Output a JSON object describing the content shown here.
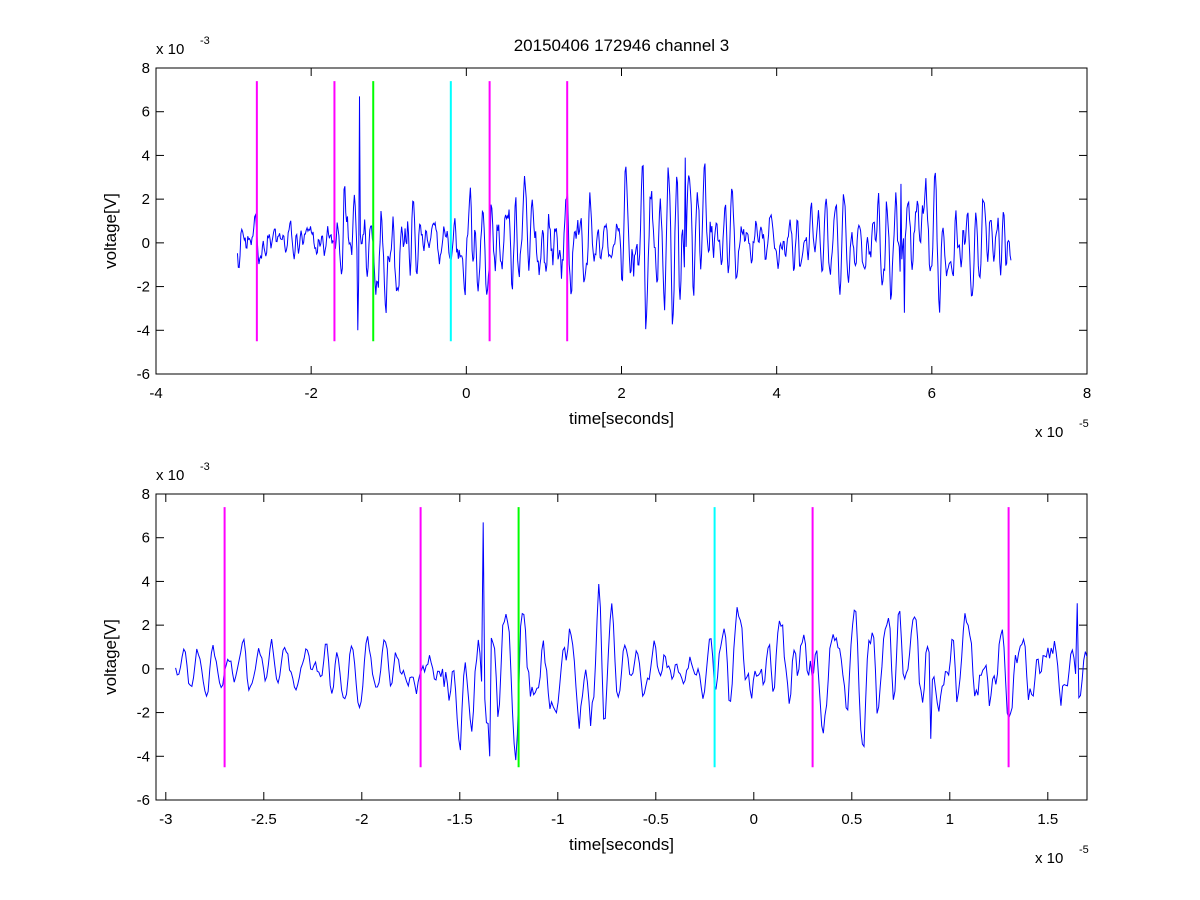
{
  "chart_data": [
    {
      "type": "line",
      "title": "20150406 172946 channel 3",
      "xlabel": "time[seconds]",
      "ylabel": "voltage[V]",
      "xlim": [
        -4e-05,
        8e-05
      ],
      "ylim": [
        -0.006,
        0.008
      ],
      "x_ticks": [
        -4e-05,
        -2e-05,
        0,
        2e-05,
        4e-05,
        6e-05,
        8e-05
      ],
      "x_tick_labels": [
        "-4",
        "-2",
        "0",
        "2",
        "4",
        "6",
        "8"
      ],
      "y_ticks": [
        -0.006,
        -0.004,
        -0.002,
        0,
        0.002,
        0.004,
        0.006,
        0.008
      ],
      "y_tick_labels": [
        "-6",
        "-4",
        "-2",
        "0",
        "2",
        "4",
        "6",
        "8"
      ],
      "x_exponent": {
        "base": "x 10",
        "power": "-5"
      },
      "y_exponent": {
        "base": "x 10",
        "power": "-3"
      },
      "grid": false,
      "signal": {
        "color": "#0000ff",
        "x_start": -2.95e-05,
        "x_end": 7.02e-05,
        "notable_peaks": [
          {
            "x": -1.38e-05,
            "y": 0.0067
          },
          {
            "x": -1.4e-05,
            "y": -0.004
          },
          {
            "x": 2.82e-05,
            "y": 0.0039
          },
          {
            "x": 5.6e-05,
            "y": 0.0027
          },
          {
            "x": 5.65e-05,
            "y": -0.0032
          }
        ]
      },
      "markers": [
        {
          "x": -2.7e-05,
          "color": "#ff00ff",
          "ymin": -0.0045,
          "ymax": 0.0074
        },
        {
          "x": -1.7e-05,
          "color": "#ff00ff",
          "ymin": -0.0045,
          "ymax": 0.0074
        },
        {
          "x": -1.2e-05,
          "color": "#00ff00",
          "ymin": -0.0045,
          "ymax": 0.0074
        },
        {
          "x": -2e-06,
          "color": "#00ffff",
          "ymin": -0.0045,
          "ymax": 0.0074
        },
        {
          "x": 3e-06,
          "color": "#ff00ff",
          "ymin": -0.0045,
          "ymax": 0.0074
        },
        {
          "x": 1.3e-05,
          "color": "#ff00ff",
          "ymin": -0.0045,
          "ymax": 0.0074
        }
      ]
    },
    {
      "type": "line",
      "title": "",
      "xlabel": "time[seconds]",
      "ylabel": "voltage[V]",
      "xlim": [
        -3.05e-05,
        1.7e-05
      ],
      "ylim": [
        -0.006,
        0.008
      ],
      "x_ticks": [
        -3e-05,
        -2.5e-05,
        -2e-05,
        -1.5e-05,
        -1e-05,
        -5e-06,
        0,
        5e-06,
        1e-05,
        1.5e-05
      ],
      "x_tick_labels": [
        "-3",
        "-2.5",
        "-2",
        "-1.5",
        "-1",
        "-0.5",
        "0",
        "0.5",
        "1",
        "1.5"
      ],
      "y_ticks": [
        -0.006,
        -0.004,
        -0.002,
        0,
        0.002,
        0.004,
        0.006,
        0.008
      ],
      "y_tick_labels": [
        "-6",
        "-4",
        "-2",
        "0",
        "2",
        "4",
        "6",
        "8"
      ],
      "x_exponent": {
        "base": "x 10",
        "power": "-5"
      },
      "y_exponent": {
        "base": "x 10",
        "power": "-3"
      },
      "grid": false,
      "signal": {
        "color": "#0000ff",
        "x_start": -2.95e-05,
        "x_end": 1.7e-05,
        "notable_peaks": [
          {
            "x": -1.38e-05,
            "y": 0.0067
          },
          {
            "x": -1.35e-05,
            "y": -0.004
          },
          {
            "x": 1.65e-05,
            "y": 0.003
          },
          {
            "x": 9e-06,
            "y": -0.0032
          }
        ]
      },
      "markers": [
        {
          "x": -2.7e-05,
          "color": "#ff00ff",
          "ymin": -0.0045,
          "ymax": 0.0074
        },
        {
          "x": -1.7e-05,
          "color": "#ff00ff",
          "ymin": -0.0045,
          "ymax": 0.0074
        },
        {
          "x": -1.2e-05,
          "color": "#00ff00",
          "ymin": -0.0045,
          "ymax": 0.0074
        },
        {
          "x": -2e-06,
          "color": "#00ffff",
          "ymin": -0.0045,
          "ymax": 0.0074
        },
        {
          "x": 3e-06,
          "color": "#ff00ff",
          "ymin": -0.0045,
          "ymax": 0.0074
        },
        {
          "x": 1.3e-05,
          "color": "#ff00ff",
          "ymin": -0.0045,
          "ymax": 0.0074
        }
      ]
    }
  ]
}
